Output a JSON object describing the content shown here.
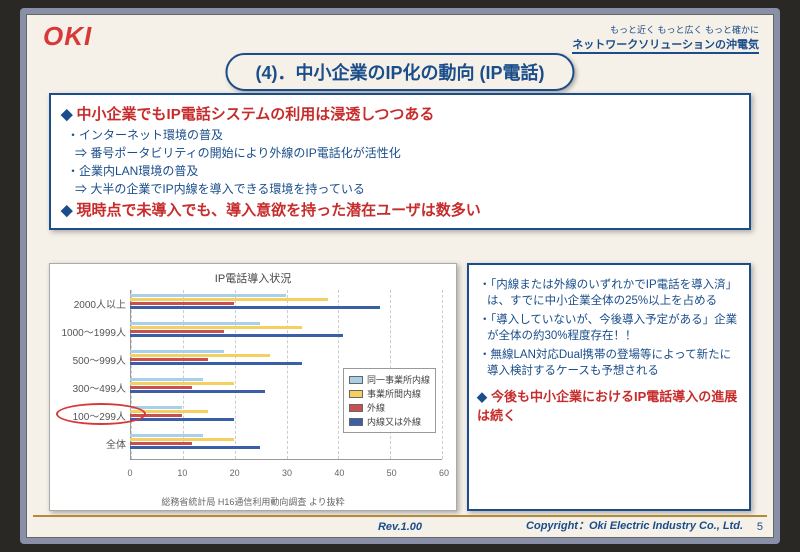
{
  "logo": "OKI",
  "tagline": {
    "line1": "もっと近く もっと広く もっと確かに",
    "line2": "ネットワークソリューションの沖電気"
  },
  "title": "(4)．中小企業のIP化の動向 (IP電話)",
  "box1": {
    "h1": "中小企業でもIP電話システムの利用は浸透しつつある",
    "l1": "・インターネット環境の普及",
    "l1a": "⇒ 番号ポータビリティの開始により外線のIP電話化が活性化",
    "l2": "・企業内LAN環境の普及",
    "l2a": "⇒ 大半の企業でIP内線を導入できる環境を持っている",
    "h2": "現時点で未導入でも、導入意欲を持った潜在ユーザは数多い"
  },
  "chart": {
    "title": "IP電話導入状況",
    "xmax": 60,
    "xticks": [
      0,
      10,
      20,
      30,
      40,
      50,
      60
    ],
    "categories": [
      "2000人以上",
      "1000～1999人",
      "500～999人",
      "300～499人",
      "100～299人",
      "全体"
    ],
    "legend": [
      "同一事業所内線",
      "事業所間内線",
      "外線",
      "内線又は外線"
    ],
    "colors": [
      "#a8d0e8",
      "#f5d060",
      "#c75050",
      "#3a5fa8"
    ],
    "data": [
      [
        30,
        38,
        20,
        48
      ],
      [
        25,
        33,
        18,
        41
      ],
      [
        18,
        27,
        15,
        33
      ],
      [
        14,
        20,
        12,
        26
      ],
      [
        10,
        15,
        10,
        20
      ],
      [
        14,
        20,
        12,
        25
      ]
    ],
    "highlight_row": 4,
    "source": "総務省統計局 H16通信利用動向調査 より抜粋"
  },
  "text": {
    "b1": "・「内線または外線のいずれかでIP電話を導入済」は、すでに中小企業全体の25%以上を占める",
    "b2": "・「導入していないが、今後導入予定がある」企業が全体の約30%程度存在！！",
    "b3": "・無線LAN対応Dual携帯の登場等によって新たに導入検討するケースも予想される",
    "c": "今後も中小企業におけるIP電話導入の進展は続く"
  },
  "footer": {
    "rev": "Rev.1.00",
    "copy": "Copyright：Oki Electric Industry Co., Ltd.",
    "page": "5"
  }
}
